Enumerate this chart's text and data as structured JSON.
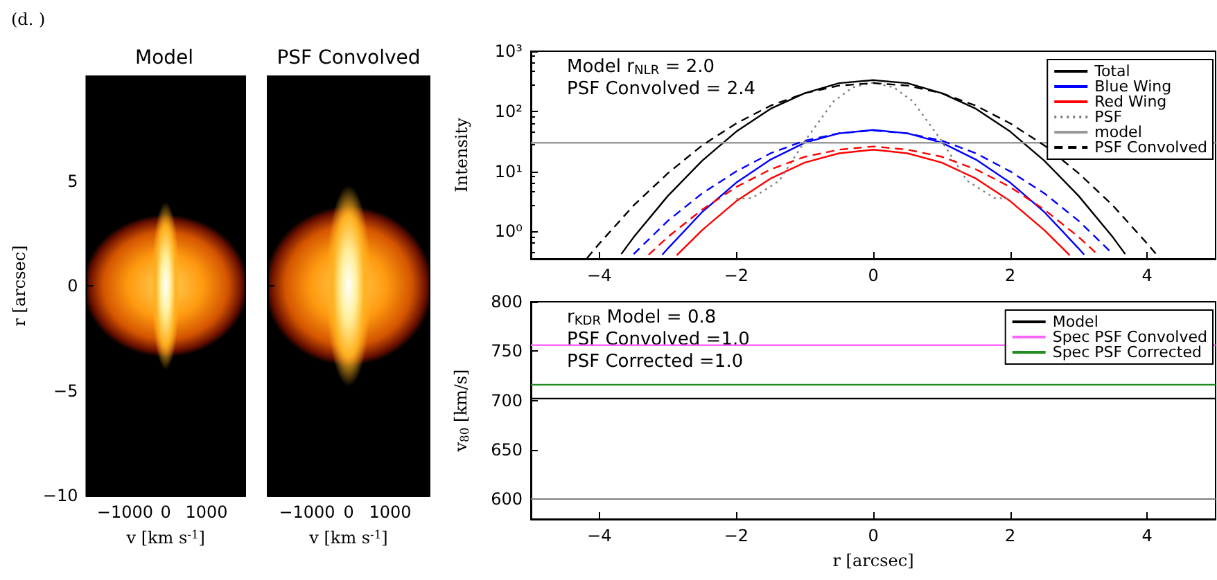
{
  "chart_data": [
    {
      "type": "scatter",
      "title": "Model",
      "xlabel": "v [km s$^{-1}$]",
      "ylabel": "r [arcsec]",
      "annotations": [
        "(d. )"
      ],
      "xlim": [
        -1950,
        1950
      ],
      "ylim": [
        -10,
        10
      ],
      "xticks": [
        -1000,
        0,
        1000
      ],
      "yticks": [
        -10,
        -5,
        0,
        5
      ]
    },
    {
      "type": "scatter",
      "title": "PSF Convolved",
      "xlabel": "v [km s$^{-1}$]",
      "xlim": [
        -1950,
        1950
      ],
      "ylim": [
        -10,
        10
      ],
      "xticks": [
        -1000,
        0,
        1000
      ],
      "yticks": [
        -10,
        -5,
        0,
        5
      ],
      "tick_labels": "x"
    },
    {
      "type": "line",
      "ylabel": "Intensity",
      "log": "y",
      "legend": "top right",
      "annotations": [
        "Model r$_{NLR}$ = 2.0",
        "PSF Convolved = 2.4"
      ],
      "xlim": [
        -5,
        5
      ],
      "ylim": [
        0.35,
        1000
      ],
      "xticks": [
        -4,
        -2,
        0,
        2,
        4
      ],
      "yticks": [
        {
          "value": 1,
          "label": "10⁰"
        },
        {
          "value": 10,
          "label": "10¹"
        },
        {
          "value": 100,
          "label": "10²"
        },
        {
          "value": 1000,
          "label": "10³"
        }
      ],
      "series": [
        {
          "name": "Total",
          "color": "#000000",
          "line_style": "solid",
          "x": [
            -3.68,
            -3.5,
            -3,
            -2.5,
            -2,
            -1.5,
            -1,
            -0.5,
            0,
            0.5,
            1,
            1.5,
            2,
            2.5,
            3,
            3.5,
            3.68
          ],
          "values": [
            0.42,
            0.8,
            3.9,
            15,
            46,
            110,
            200,
            294,
            330,
            294,
            200,
            110,
            46,
            15,
            3.9,
            0.8,
            0.42
          ]
        },
        {
          "name": "Blue Wing",
          "color": "#0000ff",
          "line_style": "solid",
          "x": [
            -3.08,
            -3,
            -2.5,
            -2,
            -1.5,
            -1,
            -0.5,
            0,
            0.5,
            1,
            1.5,
            2,
            2.5,
            3,
            3.08
          ],
          "values": [
            0.41,
            0.52,
            2.1,
            6.5,
            15.7,
            30,
            43,
            49,
            43,
            30,
            15.7,
            6.5,
            2.1,
            0.52,
            0.41
          ]
        },
        {
          "name": "Red Wing",
          "color": "#ff0000",
          "line_style": "solid",
          "x": [
            -2.87,
            -2.5,
            -2,
            -1.5,
            -1,
            -0.5,
            0,
            0.5,
            1,
            1.5,
            2,
            2.5,
            2.87
          ],
          "values": [
            0.4,
            1.05,
            3.2,
            7.6,
            14,
            20,
            23,
            20,
            14,
            7.6,
            3.2,
            1.05,
            0.4
          ]
        },
        {
          "name": "PSF",
          "color": "#808080",
          "line_style": "dotted",
          "x": [
            -2,
            -1.77,
            -1.37,
            -1,
            -0.58,
            -0.3,
            0,
            0.3,
            0.58,
            1,
            1.37,
            1.77,
            2
          ],
          "values": [
            3.5,
            3.6,
            7,
            32,
            146,
            250,
            300,
            250,
            146,
            32,
            7,
            3.6,
            3.5
          ]
        },
        {
          "name": "model",
          "color": "#999999",
          "line_style": "solid",
          "x": [
            -5,
            5
          ],
          "values": [
            30,
            30
          ]
        },
        {
          "name": "PSF Convolved",
          "color": "#000000",
          "line_style": "dashed",
          "x": [
            -4.18,
            -4,
            -3.5,
            -3,
            -2.5,
            -2,
            -1.5,
            -1,
            -0.5,
            0,
            0.5,
            1,
            1.5,
            2,
            2.5,
            3,
            3.5,
            4,
            4.18
          ],
          "values": [
            0.36,
            0.63,
            2.7,
            9.3,
            27,
            63,
            124,
            200,
            268,
            295,
            268,
            200,
            124,
            63,
            27,
            9.3,
            2.7,
            0.63,
            0.36
          ]
        },
        {
          "color": "#0000ff",
          "line_style": "dashed",
          "x": [
            -3.5,
            -3,
            -2.5,
            -2,
            -1.5,
            -1,
            -0.5,
            0,
            0.5,
            1,
            1.5,
            2,
            2.5,
            3,
            3.5
          ],
          "values": [
            0.42,
            1.5,
            4.3,
            10,
            20,
            32.5,
            43,
            48,
            43,
            32.5,
            20,
            10,
            4.3,
            1.5,
            0.42
          ]
        },
        {
          "color": "#ff0000",
          "line_style": "dashed",
          "x": [
            -3.28,
            -3,
            -2.5,
            -2,
            -1.5,
            -1,
            -0.5,
            0,
            0.5,
            1,
            1.5,
            2,
            2.5,
            3,
            3.28
          ],
          "values": [
            0.41,
            0.81,
            2.3,
            5.5,
            10.8,
            17.5,
            23,
            26,
            23,
            17.5,
            10.8,
            5.5,
            2.3,
            0.81,
            0.41
          ]
        }
      ]
    },
    {
      "type": "line",
      "xlabel": "r [arcsec]",
      "ylabel": "v$_{80}$ [km/s]",
      "legend": "top right",
      "annotations": [
        "r$_{KDR}$ Model = 0.8",
        "PSF Convolved =1.0",
        "PSF Corrected =1.0"
      ],
      "xlim": [
        -5,
        5
      ],
      "ylim": [
        580,
        800
      ],
      "xticks": [
        -4,
        -2,
        0,
        2,
        4
      ],
      "yticks": [
        600,
        650,
        700,
        750,
        800
      ],
      "ref_lines": [
        {
          "axis": "y",
          "value": 600,
          "color": "#808080"
        }
      ],
      "series": [
        {
          "name": "Model",
          "color": "#000000",
          "x": [
            -5,
            5
          ],
          "values": [
            702,
            702
          ]
        },
        {
          "name": "Spec PSF Convolved",
          "color": "#ff66ff",
          "x": [
            -5,
            5
          ],
          "values": [
            756,
            756
          ]
        },
        {
          "name": "Spec PSF Corrected",
          "color": "#228b22",
          "x": [
            -5,
            5
          ],
          "values": [
            716,
            716
          ]
        }
      ]
    }
  ]
}
